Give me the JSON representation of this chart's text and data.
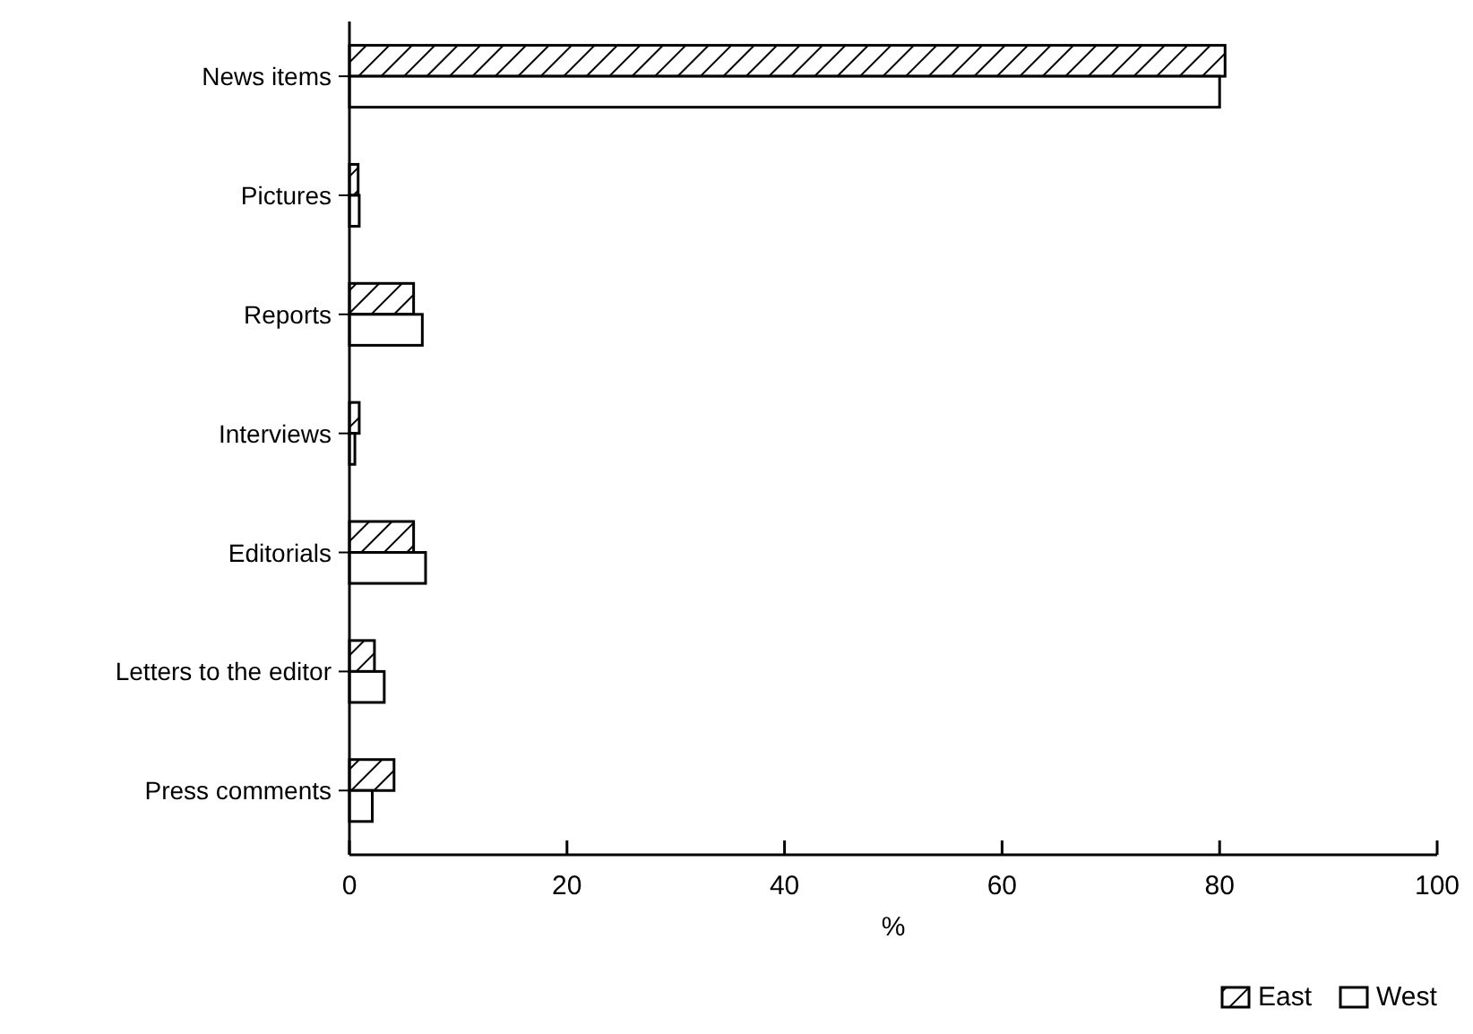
{
  "chart_data": {
    "type": "bar",
    "orientation": "horizontal",
    "xlabel": "%",
    "categories": [
      "News items",
      "Pictures",
      "Reports",
      "Interviews",
      "Editorials",
      "Letters to the editor",
      "Press comments"
    ],
    "series": [
      {
        "name": "East",
        "color": "#000000",
        "values": [
          80.5,
          0.8,
          5.9,
          0.9,
          5.9,
          2.3,
          4.1
        ]
      },
      {
        "name": "West",
        "color": "#ffffff",
        "values": [
          80,
          0.9,
          6.7,
          0.5,
          7.0,
          3.2,
          2.1
        ]
      }
    ],
    "xlim": [
      0,
      100
    ],
    "xticks": [
      0,
      20,
      40,
      60,
      80,
      100
    ],
    "grid": false,
    "legend": "bottom right"
  }
}
